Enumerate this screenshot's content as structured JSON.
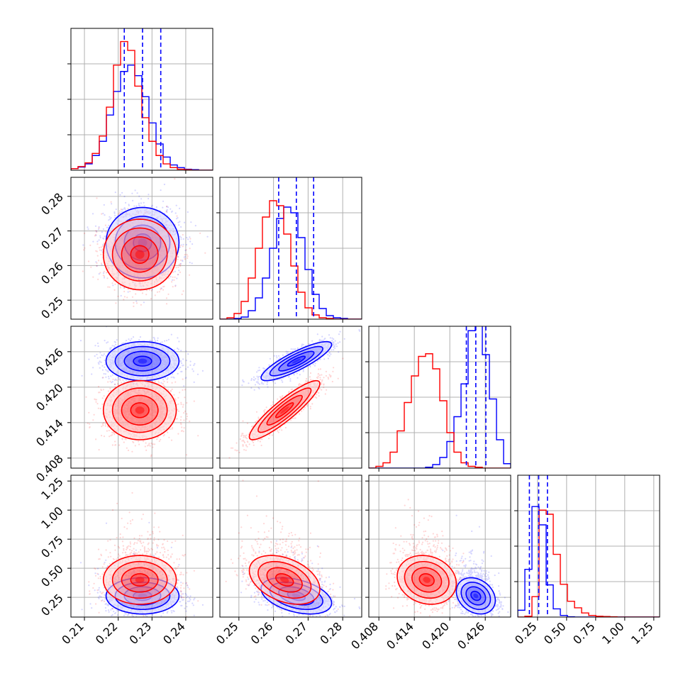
{
  "chart_data": {
    "type": "corner",
    "grid": true,
    "colors": {
      "series_a": "#0000ff",
      "series_b": "#ff0000"
    },
    "series": [
      {
        "color": "#0000ff",
        "quantiles_style": "dashed"
      },
      {
        "color": "#ff0000"
      }
    ],
    "params": [
      {
        "range": [
          0.206,
          0.248
        ],
        "ticks": [
          0.21,
          0.22,
          0.23,
          0.24
        ],
        "tick_labels": [
          "0.21",
          "0.22",
          "0.23",
          "0.24"
        ]
      },
      {
        "range": [
          0.2445,
          0.2855
        ],
        "ticks": [
          0.25,
          0.26,
          0.27,
          0.28
        ],
        "tick_labels": [
          "0.25",
          "0.26",
          "0.27",
          "0.28"
        ]
      },
      {
        "range": [
          0.4063,
          0.4303
        ],
        "ticks": [
          0.408,
          0.414,
          0.42,
          0.426
        ],
        "tick_labels": [
          "0.408",
          "0.414",
          "0.420",
          "0.426"
        ]
      },
      {
        "range": [
          0.08,
          1.3
        ],
        "ticks": [
          0.25,
          0.5,
          0.75,
          1.0,
          1.25
        ],
        "tick_labels": [
          "0.25",
          "0.50",
          "0.75",
          "1.00",
          "1.25"
        ]
      }
    ],
    "diagonal": [
      {
        "bin_start": 0.206,
        "bin_width": 0.0021,
        "ymax": 0.27,
        "hist_a": [
          0.003,
          0.006,
          0.012,
          0.028,
          0.055,
          0.105,
          0.15,
          0.188,
          0.2,
          0.18,
          0.14,
          0.09,
          0.05,
          0.025,
          0.01,
          0.005,
          0.002,
          0.001,
          0.0,
          0.0
        ],
        "hist_b": [
          0.003,
          0.007,
          0.014,
          0.032,
          0.065,
          0.12,
          0.2,
          0.245,
          0.228,
          0.16,
          0.1,
          0.055,
          0.028,
          0.012,
          0.005,
          0.002,
          0.001,
          0.0,
          0.0,
          0.0
        ],
        "quantiles_a": [
          0.2218,
          0.2272,
          0.2326
        ]
      },
      {
        "bin_start": 0.2445,
        "bin_width": 0.00205,
        "ymax": 0.2,
        "hist_a": [
          0.0,
          0.0,
          0.001,
          0.003,
          0.012,
          0.03,
          0.058,
          0.1,
          0.142,
          0.158,
          0.15,
          0.115,
          0.07,
          0.035,
          0.015,
          0.005,
          0.002,
          0.001,
          0.0,
          0.0
        ],
        "hist_b": [
          0.0,
          0.002,
          0.008,
          0.025,
          0.058,
          0.1,
          0.144,
          0.167,
          0.16,
          0.12,
          0.075,
          0.038,
          0.016,
          0.006,
          0.002,
          0.001,
          0.0,
          0.0,
          0.0,
          0.0
        ],
        "quantiles_a": [
          0.2615,
          0.2666,
          0.2716
        ]
      },
      {
        "bin_start": 0.4063,
        "bin_width": 0.0012,
        "ymax": 0.16,
        "hist_a": [
          0.0,
          0.0,
          0.0,
          0.0,
          0.0,
          0.0,
          0.0,
          0.0,
          0.001,
          0.004,
          0.012,
          0.03,
          0.058,
          0.095,
          0.155,
          0.166,
          0.128,
          0.078,
          0.032,
          0.005
        ],
        "hist_b": [
          0.0,
          0.002,
          0.006,
          0.018,
          0.042,
          0.074,
          0.104,
          0.126,
          0.129,
          0.112,
          0.076,
          0.04,
          0.018,
          0.006,
          0.002,
          0.001,
          0.0,
          0.0,
          0.0,
          0.0
        ],
        "quantiles_a": [
          0.4228,
          0.4244,
          0.4261
        ]
      },
      {
        "bin_start": 0.08,
        "bin_width": 0.061,
        "ymax": 0.52,
        "hist_a": [
          0.025,
          0.175,
          0.405,
          0.338,
          0.118,
          0.03,
          0.006,
          0.001,
          0.0,
          0.0,
          0.0,
          0.0,
          0.0,
          0.0,
          0.0,
          0.0,
          0.0,
          0.0,
          0.0,
          0.0
        ],
        "hist_b": [
          0.0,
          0.003,
          0.075,
          0.392,
          0.377,
          0.23,
          0.12,
          0.058,
          0.034,
          0.015,
          0.006,
          0.003,
          0.002,
          0.001,
          0.0,
          0.0,
          0.0,
          0.0,
          0.0,
          0.0
        ],
        "quantiles_a": [
          0.18,
          0.26,
          0.335
        ]
      }
    ],
    "gaussians": {
      "a": {
        "mean": [
          0.2272,
          0.2666,
          0.4244,
          0.2625
        ],
        "sd": [
          0.0054,
          0.0051,
          0.00165,
          0.078
        ],
        "corr": [
          [
            1,
            0,
            0,
            0
          ],
          [
            0,
            1,
            0.85,
            -0.4
          ],
          [
            0,
            0.85,
            1,
            -0.25
          ],
          [
            0,
            -0.4,
            -0.25,
            1
          ]
        ]
      },
      "b": {
        "mean": [
          0.2264,
          0.2632,
          0.4161,
          0.4
        ],
        "sd": [
          0.0054,
          0.0051,
          0.0025,
          0.105
        ],
        "corr": [
          [
            1,
            0,
            0,
            0
          ],
          [
            0,
            1,
            0.9,
            -0.38
          ],
          [
            0,
            0.9,
            1,
            -0.15
          ],
          [
            0,
            -0.38,
            -0.15,
            1
          ]
        ]
      }
    }
  }
}
